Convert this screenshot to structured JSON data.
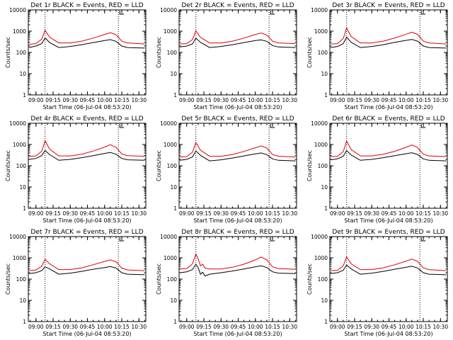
{
  "chart_data": [
    {
      "type": "line",
      "title": "Det 1r BLACK = Events, RED = LLD",
      "xlabel": "Start Time (06-Jul-04 08:53:20)",
      "ylabel": "Counts/sec",
      "yscale": "log",
      "ylim": [
        1,
        10000
      ],
      "yticks": [
        "1",
        "10",
        "100",
        "1000",
        "10000"
      ],
      "xlim": [
        "08:53:20",
        "10:36:00"
      ],
      "xticks": [
        "09:00",
        "09:15",
        "09:30",
        "09:45",
        "10:00",
        "10:15",
        "10:30"
      ],
      "markers": [
        "09:08",
        "10:12"
      ],
      "x": [
        "08:54",
        "09:00",
        "09:05",
        "09:08",
        "09:12",
        "09:20",
        "09:30",
        "09:40",
        "09:50",
        "10:00",
        "10:05",
        "10:10",
        "10:15",
        "10:20",
        "10:35"
      ],
      "series": [
        {
          "color": "#000000",
          "values": [
            170,
            200,
            260,
            480,
            290,
            170,
            190,
            230,
            290,
            360,
            400,
            330,
            200,
            170,
            160
          ]
        },
        {
          "color": "#e00000",
          "values": [
            240,
            260,
            420,
            1100,
            520,
            280,
            280,
            340,
            470,
            700,
            850,
            680,
            340,
            280,
            250
          ]
        }
      ]
    },
    {
      "type": "line",
      "title": "Det 2r BLACK = Events, RED = LLD",
      "xlabel": "Start Time (06-Jul-04 08:53:20)",
      "ylabel": "Counts/sec",
      "yscale": "log",
      "ylim": [
        1,
        10000
      ],
      "yticks": [
        "1",
        "10",
        "100",
        "1000",
        "10000"
      ],
      "xlim": [
        "08:53:20",
        "10:36:00"
      ],
      "xticks": [
        "09:00",
        "09:15",
        "09:30",
        "09:45",
        "10:00",
        "10:15",
        "10:30"
      ],
      "markers": [
        "09:08",
        "10:12"
      ],
      "x": [
        "08:54",
        "09:00",
        "09:05",
        "09:08",
        "09:12",
        "09:20",
        "09:30",
        "09:40",
        "09:50",
        "10:00",
        "10:05",
        "10:10",
        "10:15",
        "10:20",
        "10:35"
      ],
      "series": [
        {
          "color": "#000000",
          "values": [
            180,
            200,
            250,
            470,
            300,
            170,
            190,
            230,
            290,
            360,
            390,
            330,
            210,
            180,
            170
          ]
        },
        {
          "color": "#e00000",
          "values": [
            250,
            260,
            400,
            1050,
            510,
            280,
            280,
            340,
            470,
            700,
            820,
            660,
            340,
            280,
            260
          ]
        }
      ]
    },
    {
      "type": "line",
      "title": "Det 3r BLACK = Events, RED = LLD",
      "xlabel": "Start Time (06-Jul-04 08:53:20)",
      "ylabel": "Counts/sec",
      "yscale": "log",
      "ylim": [
        1,
        10000
      ],
      "yticks": [
        "1",
        "10",
        "100",
        "1000",
        "10000"
      ],
      "xlim": [
        "08:53:20",
        "10:36:00"
      ],
      "xticks": [
        "09:00",
        "09:15",
        "09:30",
        "09:45",
        "10:00",
        "10:15",
        "10:30"
      ],
      "markers": [
        "09:08",
        "10:12"
      ],
      "x": [
        "08:54",
        "09:00",
        "09:05",
        "09:08",
        "09:12",
        "09:20",
        "09:30",
        "09:40",
        "09:50",
        "10:00",
        "10:05",
        "10:10",
        "10:15",
        "10:20",
        "10:35"
      ],
      "series": [
        {
          "color": "#000000",
          "values": [
            170,
            190,
            260,
            520,
            300,
            170,
            190,
            230,
            300,
            370,
            410,
            340,
            200,
            170,
            160
          ]
        },
        {
          "color": "#e00000",
          "values": [
            250,
            260,
            450,
            1400,
            560,
            280,
            280,
            340,
            480,
            720,
            900,
            700,
            340,
            280,
            250
          ]
        }
      ]
    },
    {
      "type": "line",
      "title": "Det 4r BLACK = Events, RED = LLD",
      "xlabel": "Start Time (06-Jul-04 08:53:20)",
      "ylabel": "Counts/sec",
      "yscale": "log",
      "ylim": [
        1,
        10000
      ],
      "yticks": [
        "1",
        "10",
        "100",
        "1000",
        "10000"
      ],
      "xlim": [
        "08:53:20",
        "10:36:00"
      ],
      "xticks": [
        "09:00",
        "09:15",
        "09:30",
        "09:45",
        "10:00",
        "10:15",
        "10:30"
      ],
      "markers": [
        "09:08",
        "10:12"
      ],
      "x": [
        "08:54",
        "09:00",
        "09:05",
        "09:08",
        "09:12",
        "09:20",
        "09:30",
        "09:40",
        "09:50",
        "10:00",
        "10:05",
        "10:10",
        "10:15",
        "10:20",
        "10:35"
      ],
      "series": [
        {
          "color": "#000000",
          "values": [
            200,
            220,
            300,
            520,
            330,
            180,
            200,
            240,
            300,
            380,
            420,
            350,
            220,
            190,
            180
          ]
        },
        {
          "color": "#e00000",
          "values": [
            280,
            290,
            480,
            1500,
            600,
            290,
            290,
            350,
            490,
            760,
            980,
            740,
            360,
            300,
            280
          ]
        }
      ]
    },
    {
      "type": "line",
      "title": "Det 5r BLACK = Events, RED = LLD",
      "xlabel": "Start Time (06-Jul-04 08:53:20)",
      "ylabel": "Counts/sec",
      "yscale": "log",
      "ylim": [
        1,
        10000
      ],
      "yticks": [
        "1",
        "10",
        "100",
        "1000",
        "10000"
      ],
      "xlim": [
        "08:53:20",
        "10:36:00"
      ],
      "xticks": [
        "09:00",
        "09:15",
        "09:30",
        "09:45",
        "10:00",
        "10:15",
        "10:30"
      ],
      "markers": [
        "09:08",
        "10:12"
      ],
      "x": [
        "08:54",
        "09:00",
        "09:05",
        "09:08",
        "09:12",
        "09:20",
        "09:30",
        "09:40",
        "09:50",
        "10:00",
        "10:05",
        "10:10",
        "10:15",
        "10:20",
        "10:35"
      ],
      "series": [
        {
          "color": "#000000",
          "values": [
            180,
            200,
            260,
            500,
            310,
            170,
            190,
            230,
            290,
            360,
            400,
            330,
            210,
            180,
            170
          ]
        },
        {
          "color": "#e00000",
          "values": [
            260,
            270,
            430,
            1250,
            540,
            280,
            280,
            340,
            470,
            700,
            860,
            680,
            340,
            280,
            260
          ]
        }
      ]
    },
    {
      "type": "line",
      "title": "Det 6r BLACK = Events, RED = LLD",
      "xlabel": "Start Time (06-Jul-04 08:53:20)",
      "ylabel": "Counts/sec",
      "yscale": "log",
      "ylim": [
        1,
        10000
      ],
      "yticks": [
        "1",
        "10",
        "100",
        "1000",
        "10000"
      ],
      "xlim": [
        "08:53:20",
        "10:36:00"
      ],
      "xticks": [
        "09:00",
        "09:15",
        "09:30",
        "09:45",
        "10:00",
        "10:15",
        "10:30"
      ],
      "markers": [
        "09:08",
        "10:12"
      ],
      "x": [
        "08:54",
        "09:00",
        "09:05",
        "09:08",
        "09:12",
        "09:20",
        "09:30",
        "09:40",
        "09:50",
        "10:00",
        "10:05",
        "10:10",
        "10:15",
        "10:20",
        "10:35"
      ],
      "series": [
        {
          "color": "#000000",
          "values": [
            190,
            210,
            280,
            520,
            320,
            180,
            200,
            240,
            300,
            370,
            410,
            340,
            210,
            180,
            170
          ]
        },
        {
          "color": "#e00000",
          "values": [
            270,
            280,
            460,
            1450,
            580,
            290,
            290,
            350,
            480,
            740,
            950,
            720,
            350,
            290,
            270
          ]
        }
      ]
    },
    {
      "type": "line",
      "title": "Det 7r BLACK = Events, RED = LLD",
      "xlabel": "Start Time (06-Jul-04 08:53:20)",
      "ylabel": "Counts/sec",
      "yscale": "log",
      "ylim": [
        1,
        10000
      ],
      "yticks": [
        "1",
        "10",
        "100",
        "1000",
        "10000"
      ],
      "xlim": [
        "08:53:20",
        "10:36:00"
      ],
      "xticks": [
        "09:00",
        "09:15",
        "09:30",
        "09:45",
        "10:00",
        "10:15",
        "10:30"
      ],
      "markers": [
        "09:08",
        "10:12"
      ],
      "x": [
        "08:54",
        "09:00",
        "09:05",
        "09:08",
        "09:12",
        "09:20",
        "09:30",
        "09:40",
        "09:50",
        "10:00",
        "10:05",
        "10:10",
        "10:15",
        "10:20",
        "10:35"
      ],
      "series": [
        {
          "color": "#000000",
          "values": [
            180,
            200,
            250,
            380,
            300,
            170,
            190,
            230,
            290,
            350,
            390,
            330,
            200,
            170,
            160
          ]
        },
        {
          "color": "#e00000",
          "values": [
            250,
            270,
            400,
            850,
            520,
            280,
            280,
            340,
            470,
            680,
            800,
            650,
            330,
            270,
            250
          ]
        }
      ]
    },
    {
      "type": "line",
      "title": "Det 8r BLACK = Events, RED = LLD",
      "xlabel": "Start Time (06-Jul-04 08:53:20)",
      "ylabel": "Counts/sec",
      "yscale": "log",
      "ylim": [
        1,
        10000
      ],
      "yticks": [
        "1",
        "10",
        "100",
        "1000",
        "10000"
      ],
      "xlim": [
        "08:53:20",
        "10:36:00"
      ],
      "xticks": [
        "09:00",
        "09:15",
        "09:30",
        "09:45",
        "10:00",
        "10:15",
        "10:30"
      ],
      "markers": [
        "09:08",
        "10:12"
      ],
      "x": [
        "08:54",
        "09:00",
        "09:05",
        "09:08",
        "09:10",
        "09:12",
        "09:14",
        "09:16",
        "09:20",
        "09:30",
        "09:40",
        "09:50",
        "10:00",
        "10:05",
        "10:10",
        "10:15",
        "10:20",
        "10:35"
      ],
      "series": [
        {
          "color": "#000000",
          "values": [
            200,
            220,
            280,
            500,
            350,
            170,
            210,
            140,
            170,
            200,
            240,
            300,
            380,
            420,
            350,
            220,
            190,
            180
          ]
        },
        {
          "color": "#e00000",
          "values": [
            300,
            310,
            520,
            1500,
            900,
            420,
            500,
            330,
            300,
            300,
            360,
            500,
            800,
            1100,
            800,
            380,
            310,
            290
          ]
        }
      ]
    },
    {
      "type": "line",
      "title": "Det 9r BLACK = Events, RED = LLD",
      "xlabel": "Start Time (06-Jul-04 08:53:20)",
      "ylabel": "Counts/sec",
      "yscale": "log",
      "ylim": [
        1,
        10000
      ],
      "yticks": [
        "1",
        "10",
        "100",
        "1000",
        "10000"
      ],
      "xlim": [
        "08:53:20",
        "10:36:00"
      ],
      "xticks": [
        "09:00",
        "09:15",
        "09:30",
        "09:45",
        "10:00",
        "10:15",
        "10:30"
      ],
      "markers": [
        "09:08",
        "10:12"
      ],
      "x": [
        "08:54",
        "09:00",
        "09:05",
        "09:08",
        "09:12",
        "09:20",
        "09:30",
        "09:40",
        "09:50",
        "10:00",
        "10:05",
        "10:10",
        "10:15",
        "10:20",
        "10:35"
      ],
      "series": [
        {
          "color": "#000000",
          "values": [
            180,
            200,
            260,
            460,
            300,
            170,
            190,
            230,
            290,
            360,
            400,
            330,
            200,
            170,
            160
          ]
        },
        {
          "color": "#e00000",
          "values": [
            250,
            260,
            420,
            1100,
            520,
            280,
            280,
            340,
            470,
            700,
            870,
            680,
            340,
            280,
            250
          ]
        }
      ]
    }
  ]
}
